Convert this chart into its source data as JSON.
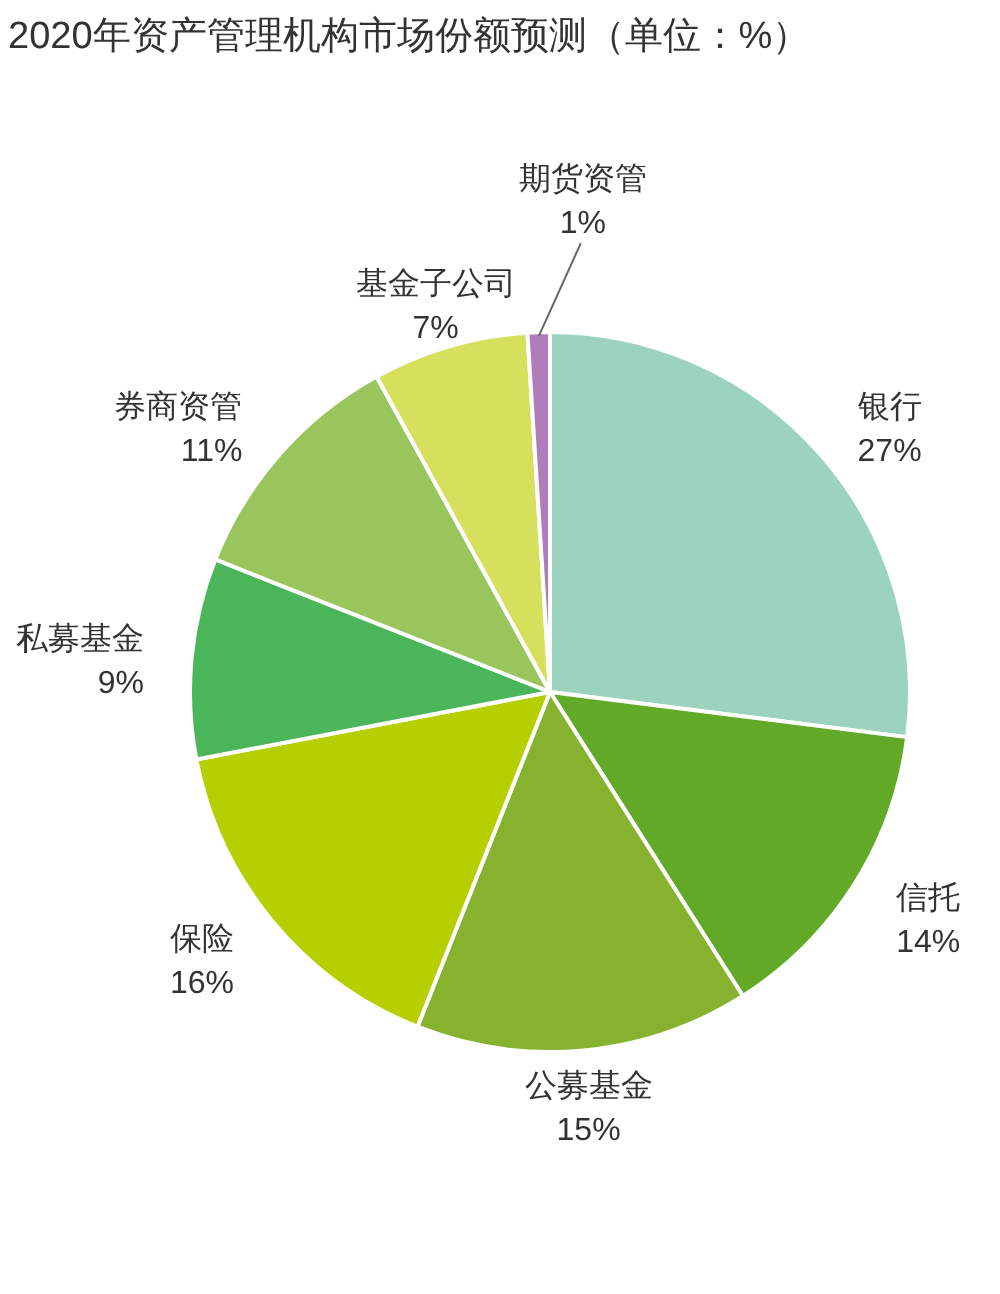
{
  "chart_data": {
    "type": "pie",
    "title": "2020年资产管理机构市场份额预测（单位：%）",
    "categories": [
      "银行",
      "信托",
      "公募基金",
      "保险",
      "私募基金",
      "券商资管",
      "基金子公司",
      "期货资管"
    ],
    "values": [
      27,
      14,
      15,
      16,
      9,
      11,
      7,
      1
    ],
    "colors": [
      "#9bd3bf",
      "#62a928",
      "#86b22f",
      "#b6cf00",
      "#4bb55a",
      "#9ac55d",
      "#d6e05c",
      "#b07cb9"
    ],
    "value_labels": [
      "27%",
      "14%",
      "15%",
      "16%",
      "9%",
      "11%",
      "7%",
      "1%"
    ]
  }
}
